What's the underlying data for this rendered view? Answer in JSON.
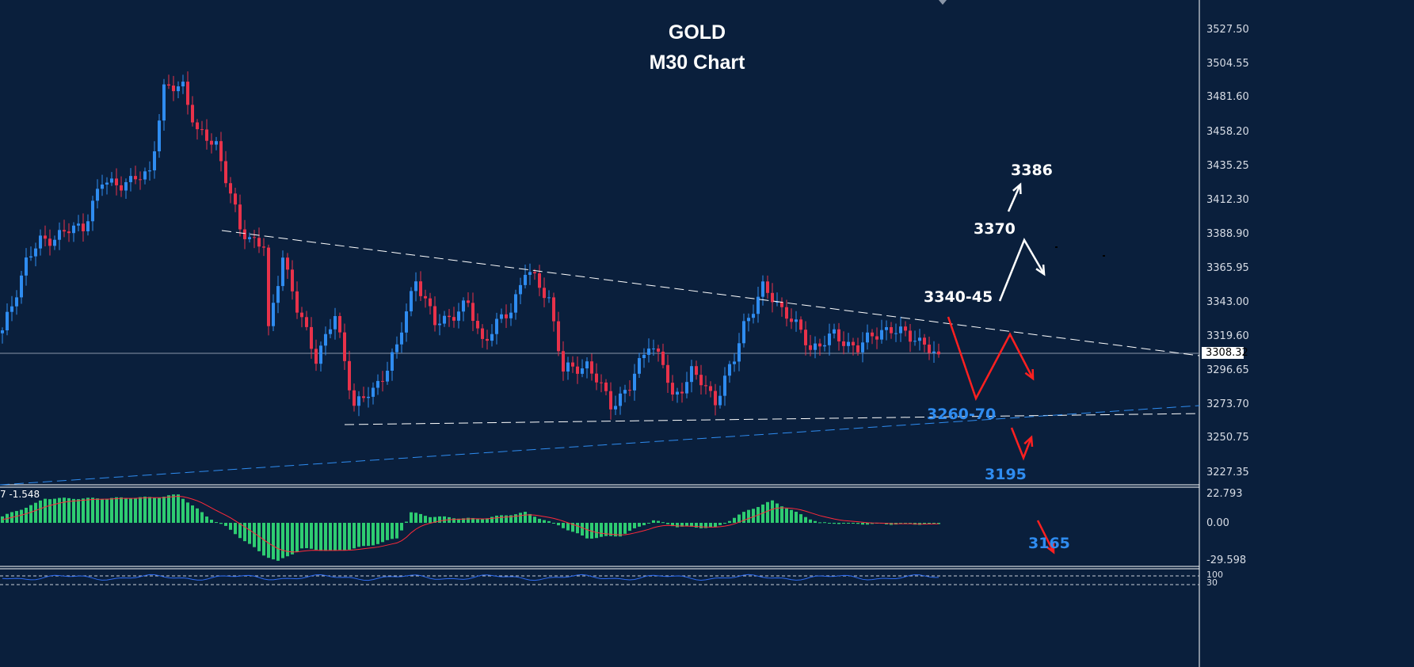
{
  "header": {
    "symbol": "GOLD",
    "timeframe": "M30 Chart"
  },
  "colors": {
    "background": "#0a1f3c",
    "bull": "#2f8cf0",
    "bear": "#e8324a",
    "macd_hist": "#2ecc71",
    "macd_signal": "#ff2a3a",
    "rsi": "#2f6cf0",
    "trendline": "#ffffff",
    "support_blue": "#2f8cf0",
    "arrow_bull": "#ffffff",
    "arrow_bear": "#ff2020"
  },
  "chart_data": [
    {
      "type": "candlestick",
      "title": "GOLD M30 Chart",
      "ylim": [
        3210,
        3545
      ],
      "price_ticks": [
        "3527.50",
        "3504.55",
        "3481.60",
        "3458.20",
        "3435.25",
        "3412.30",
        "3388.90",
        "3365.95",
        "3343.00",
        "3319.60",
        "3296.65",
        "3273.70",
        "3250.75",
        "3227.35"
      ],
      "current_price": "3308.32",
      "price_path": [
        [
          0,
          3322
        ],
        [
          5,
          3371
        ],
        [
          8,
          3384
        ],
        [
          17,
          3395
        ],
        [
          21,
          3424
        ],
        [
          27,
          3424
        ],
        [
          31,
          3432
        ],
        [
          34,
          3486
        ],
        [
          38,
          3491
        ],
        [
          41,
          3457
        ],
        [
          45,
          3451
        ],
        [
          50,
          3392
        ],
        [
          55,
          3381
        ],
        [
          56,
          3322
        ],
        [
          59,
          3376
        ],
        [
          62,
          3338
        ],
        [
          66,
          3306
        ],
        [
          70,
          3333
        ],
        [
          74,
          3274
        ],
        [
          78,
          3282
        ],
        [
          83,
          3312
        ],
        [
          87,
          3360
        ],
        [
          91,
          3328
        ],
        [
          98,
          3341
        ],
        [
          101,
          3317
        ],
        [
          107,
          3338
        ],
        [
          110,
          3365
        ],
        [
          115,
          3346
        ],
        [
          118,
          3296
        ],
        [
          123,
          3301
        ],
        [
          128,
          3274
        ],
        [
          132,
          3285
        ],
        [
          136,
          3317
        ],
        [
          139,
          3301
        ],
        [
          141,
          3277
        ],
        [
          145,
          3296
        ],
        [
          150,
          3277
        ],
        [
          154,
          3304
        ],
        [
          156,
          3328
        ],
        [
          160,
          3352
        ],
        [
          165,
          3336
        ],
        [
          170,
          3312
        ],
        [
          175,
          3320
        ],
        [
          180,
          3312
        ],
        [
          185,
          3325
        ],
        [
          192,
          3320
        ],
        [
          197,
          3304
        ]
      ],
      "trendlines": [
        {
          "kind": "resistance",
          "style": "dashed",
          "color": "#ffffff"
        },
        {
          "kind": "support",
          "style": "dashed",
          "color": "#ffffff"
        },
        {
          "kind": "support",
          "style": "dashed",
          "color": "#2f8cf0"
        }
      ],
      "annotations": [
        {
          "text": "3386",
          "color": "#ffffff"
        },
        {
          "text": "3370",
          "color": "#ffffff"
        },
        {
          "text": "3340-45",
          "color": "#ffffff"
        },
        {
          "text": "3260-70",
          "color": "#2f8cf0"
        },
        {
          "text": "3195",
          "color": "#2f8cf0"
        },
        {
          "text": "3165",
          "color": "#2f8cf0"
        }
      ]
    },
    {
      "type": "bar",
      "indicator": "MACD",
      "label": "7 -1.548",
      "ylim": [
        -29.598,
        22.793
      ],
      "ticks": [
        "22.793",
        "0.00",
        "-29.598"
      ],
      "histogram_path": [
        [
          0,
          5
        ],
        [
          7,
          15
        ],
        [
          9,
          19
        ],
        [
          15,
          19
        ],
        [
          20,
          19
        ],
        [
          33,
          20
        ],
        [
          37,
          22
        ],
        [
          43,
          5
        ],
        [
          47,
          -3
        ],
        [
          55,
          -25
        ],
        [
          58,
          -30
        ],
        [
          63,
          -20
        ],
        [
          70,
          -22
        ],
        [
          77,
          -18
        ],
        [
          83,
          -12
        ],
        [
          86,
          8
        ],
        [
          90,
          5
        ],
        [
          100,
          3
        ],
        [
          110,
          8
        ],
        [
          117,
          -2
        ],
        [
          123,
          -12
        ],
        [
          130,
          -10
        ],
        [
          137,
          2
        ],
        [
          142,
          -3
        ],
        [
          150,
          -4
        ],
        [
          157,
          10
        ],
        [
          162,
          17
        ],
        [
          167,
          8
        ],
        [
          172,
          0
        ],
        [
          183,
          -1
        ],
        [
          197,
          -1
        ]
      ]
    },
    {
      "type": "line",
      "indicator": "RSI",
      "ticks": [
        "100",
        "30"
      ]
    }
  ]
}
